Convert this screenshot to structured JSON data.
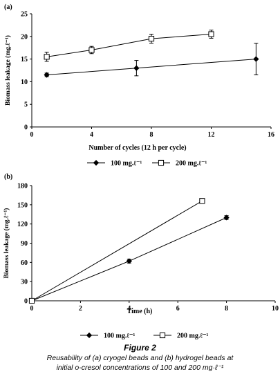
{
  "chart_data": [
    {
      "type": "line",
      "panel_label": "(a)",
      "xlabel": "Number of cycles (12 h per cycle)",
      "ylabel": "Biomass leakage (mg.ℓ⁻¹)",
      "xlim": [
        0,
        16
      ],
      "ylim": [
        0,
        25
      ],
      "xticks": [
        "0",
        "4",
        "8",
        "12",
        "16"
      ],
      "yticks": [
        "0",
        "5",
        "10",
        "15",
        "20",
        "25"
      ],
      "grid": false,
      "legend_position": "bottom",
      "series": [
        {
          "name": "100 mg.ℓ⁻¹",
          "marker": "diamond",
          "x": [
            1,
            7,
            15
          ],
          "y": [
            11.5,
            13,
            15
          ],
          "error": [
            0.4,
            1.7,
            3.5
          ]
        },
        {
          "name": "200 mg.ℓ⁻¹",
          "marker": "square",
          "x": [
            1,
            4,
            8,
            12
          ],
          "y": [
            15.5,
            17,
            19.5,
            20.5
          ],
          "error": [
            1.0,
            0.8,
            1.0,
            0.9
          ]
        }
      ]
    },
    {
      "type": "line",
      "panel_label": "(b)",
      "xlabel": "Time (h)",
      "ylabel": "Biomass leakage (mg.ℓ⁻¹)",
      "xlim": [
        0,
        10
      ],
      "ylim": [
        0,
        180
      ],
      "xticks": [
        "0",
        "2",
        "4",
        "6",
        "8",
        "10"
      ],
      "yticks": [
        "0",
        "30",
        "60",
        "90",
        "120",
        "150",
        "180"
      ],
      "grid": false,
      "legend_position": "bottom",
      "series": [
        {
          "name": "100 mg.ℓ⁻¹",
          "marker": "diamond",
          "x": [
            0,
            4,
            8
          ],
          "y": [
            0,
            62,
            130
          ],
          "error": [
            0,
            3,
            3
          ]
        },
        {
          "name": "200 mg.ℓ⁻¹",
          "marker": "square",
          "x": [
            0,
            7
          ],
          "y": [
            0,
            156
          ],
          "error": [
            0,
            2
          ]
        }
      ]
    }
  ],
  "caption": {
    "title": "Figure 2",
    "line1": "Reusability of (a) cryogel beads and (b) hydrogel beads at",
    "line2": "initial o-cresol concentrations of 100 and 200 mg·ℓ⁻¹"
  }
}
